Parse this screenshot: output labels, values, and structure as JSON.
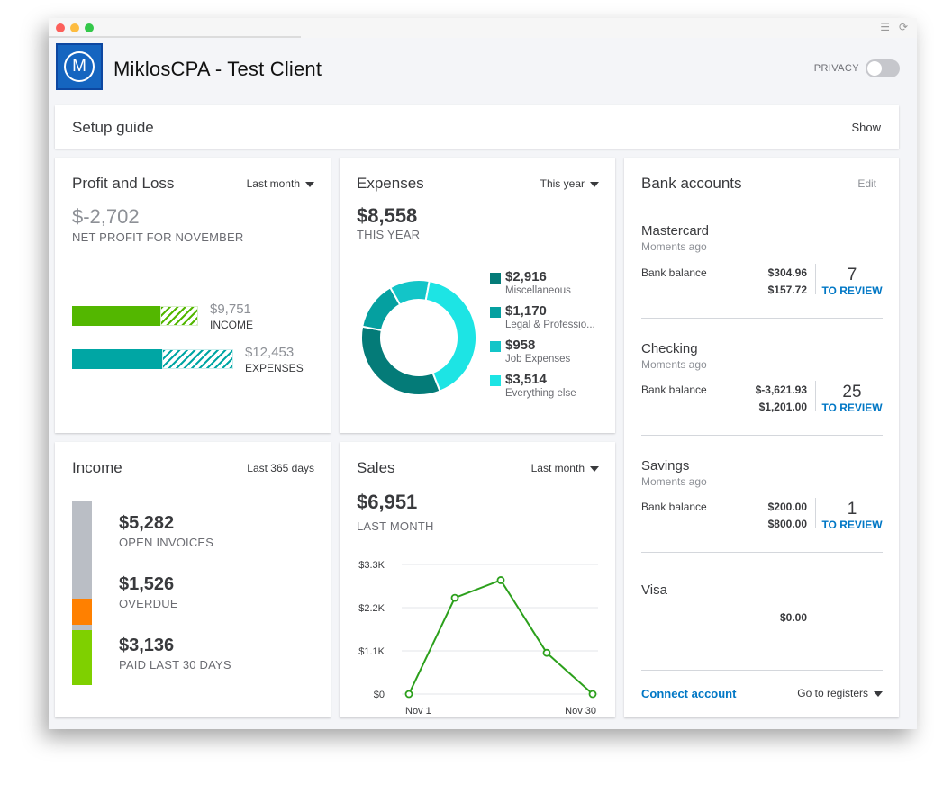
{
  "window": {
    "controls": [
      "close",
      "minimize",
      "zoom"
    ],
    "toolbar_icons": [
      "menu-icon",
      "refresh-icon"
    ]
  },
  "header": {
    "company": "MiklosCPA - Test Client",
    "logo_letter": "M",
    "privacy_label": "PRIVACY",
    "privacy_on": false
  },
  "setup_guide": {
    "title": "Setup guide",
    "action": "Show"
  },
  "profit_loss": {
    "title": "Profit and Loss",
    "period": "Last month",
    "net": "$-2,702",
    "net_label": "NET PROFIT FOR NOVEMBER",
    "income_value": "$9,751",
    "income_label": "INCOME",
    "expenses_value": "$12,453",
    "expenses_label": "EXPENSES",
    "income_fill": 0.7,
    "expenses_fill": 0.56
  },
  "expenses": {
    "title": "Expenses",
    "period": "This year",
    "total": "$8,558",
    "total_label": "THIS YEAR",
    "categories": [
      {
        "value": "$2,916",
        "label": "Miscellaneous",
        "color": "#047b78",
        "amount": 2916
      },
      {
        "value": "$1,170",
        "label": "Legal & Professio...",
        "color": "#05a0a0",
        "amount": 1170
      },
      {
        "value": "$958",
        "label": "Job Expenses",
        "color": "#13c5c8",
        "amount": 958
      },
      {
        "value": "$3,514",
        "label": "Everything else",
        "color": "#1de4e4",
        "amount": 3514
      }
    ]
  },
  "bank": {
    "title": "Bank accounts",
    "edit": "Edit",
    "accounts": [
      {
        "name": "Mastercard",
        "time": "Moments ago",
        "label": "Bank balance",
        "bank_amt": "$304.96",
        "qb_amt": "$157.72",
        "review_count": "7",
        "review_label": "TO REVIEW"
      },
      {
        "name": "Checking",
        "time": "Moments ago",
        "label": "Bank balance",
        "bank_amt": "$-3,621.93",
        "qb_amt": "$1,201.00",
        "review_count": "25",
        "review_label": "TO REVIEW"
      },
      {
        "name": "Savings",
        "time": "Moments ago",
        "label": "Bank balance",
        "bank_amt": "$200.00",
        "qb_amt": "$800.00",
        "review_count": "1",
        "review_label": "TO REVIEW"
      }
    ],
    "visa": {
      "name": "Visa",
      "amount": "$0.00"
    },
    "connect": "Connect account",
    "registers": "Go to registers"
  },
  "income": {
    "title": "Income",
    "period": "Last 365 days",
    "items": [
      {
        "value": "$5,282",
        "label": "OPEN INVOICES",
        "color": "#babec5",
        "amount": 5282
      },
      {
        "value": "$1,526",
        "label": "OVERDUE",
        "color": "#ff8000",
        "amount": 1526
      },
      {
        "value": "$3,136",
        "label": "PAID LAST 30 DAYS",
        "color": "#7fd000",
        "amount": 3136
      }
    ]
  },
  "sales": {
    "title": "Sales",
    "period": "Last month",
    "total": "$6,951",
    "total_label": "LAST MONTH"
  },
  "chart_data": {
    "type": "line",
    "title": "",
    "x": [
      "Nov 1",
      "Nov 7",
      "Nov 15",
      "Nov 22",
      "Nov 30"
    ],
    "x_tick_labels": [
      "Nov 1",
      "Nov 30"
    ],
    "series": [
      {
        "values": [
          0,
          2450,
          2900,
          1050,
          0
        ]
      }
    ],
    "yticks": [
      "$3.3K",
      "$2.2K",
      "$1.1K",
      "$0"
    ],
    "ylim": [
      0,
      3300
    ],
    "grid": true,
    "color": "#2ca01c"
  }
}
